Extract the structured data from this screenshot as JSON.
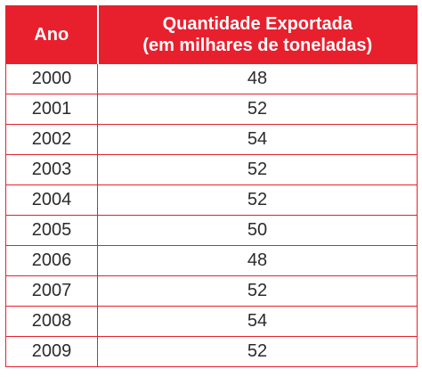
{
  "table": {
    "header": {
      "year": "Ano",
      "quantity_line1": "Quantidade Exportada",
      "quantity_line2": "(em milhares de toneladas)"
    },
    "rows": [
      {
        "year": "2000",
        "quantity": "48"
      },
      {
        "year": "2001",
        "quantity": "52"
      },
      {
        "year": "2002",
        "quantity": "54"
      },
      {
        "year": "2003",
        "quantity": "52"
      },
      {
        "year": "2004",
        "quantity": "52"
      },
      {
        "year": "2005",
        "quantity": "50"
      },
      {
        "year": "2006",
        "quantity": "48"
      },
      {
        "year": "2007",
        "quantity": "52"
      },
      {
        "year": "2008",
        "quantity": "54"
      },
      {
        "year": "2009",
        "quantity": "52"
      }
    ]
  },
  "colors": {
    "header_bg": "#e8202e",
    "header_text": "#ffffff",
    "border": "#e8202e",
    "body_text": "#2b2b2b"
  }
}
